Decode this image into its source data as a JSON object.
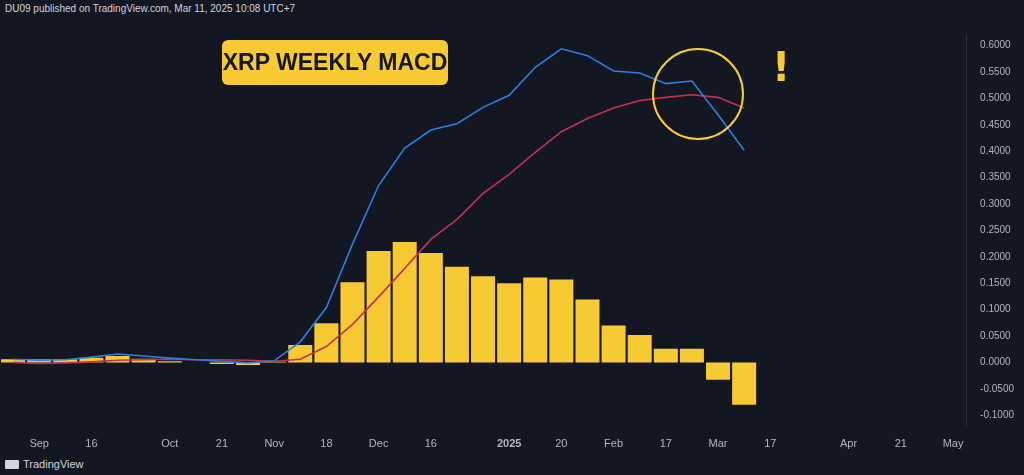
{
  "chart_data": {
    "type": "bar",
    "title": "XRP WEEKLY MACD",
    "source": "DU09 published on TradingView.com, Mar 11, 2025 10:08 UTC+7",
    "footer": "TradingView",
    "annotations": [
      "!"
    ],
    "categories": [
      null,
      "Sep",
      null,
      "16",
      null,
      null,
      "Oct",
      null,
      "21",
      null,
      "Nov",
      null,
      "18",
      null,
      "Dec",
      null,
      "16",
      null,
      null,
      "2025",
      null,
      "20",
      null,
      "Feb",
      null,
      "17",
      null,
      "Mar",
      null,
      "17",
      null,
      null,
      "Apr",
      null,
      "21",
      null,
      "May"
    ],
    "series": [
      {
        "type": "line",
        "color": "#2b7fe0",
        "values": [
          0.006,
          0.004,
          0.005,
          0.01,
          0.016,
          0.012,
          0.008,
          0.005,
          0.002,
          -0.001,
          0.003,
          0.039,
          0.104,
          0.224,
          0.335,
          0.406,
          0.44,
          0.452,
          0.483,
          0.506,
          0.559,
          0.594,
          0.581,
          0.552,
          0.548,
          0.528,
          0.533,
          0.469,
          0.402,
          null,
          null,
          null,
          null,
          null,
          null,
          null,
          null
        ]
      },
      {
        "type": "line",
        "color": "#c2334d",
        "values": [
          0.0,
          -0.002,
          -0.001,
          0.001,
          0.004,
          0.005,
          0.006,
          0.005,
          0.005,
          0.004,
          0.002,
          0.006,
          0.03,
          0.072,
          0.124,
          0.178,
          0.233,
          0.271,
          0.32,
          0.356,
          0.398,
          0.437,
          0.462,
          0.482,
          0.496,
          0.502,
          0.507,
          0.502,
          0.482,
          null,
          null,
          null,
          null,
          null,
          null,
          null,
          null
        ]
      },
      {
        "type": "bar",
        "color": "#f7c933",
        "values": [
          0.006,
          0.006,
          0.006,
          0.009,
          0.012,
          0.007,
          0.002,
          0.0,
          -0.003,
          -0.005,
          0.001,
          0.033,
          0.074,
          0.152,
          0.211,
          0.228,
          0.207,
          0.181,
          0.163,
          0.15,
          0.161,
          0.157,
          0.119,
          0.07,
          0.052,
          0.026,
          0.026,
          -0.033,
          -0.08,
          null,
          null,
          null,
          null,
          null,
          null,
          null,
          null
        ]
      }
    ],
    "ylim": [
      -0.122,
      0.622
    ],
    "yticks": [
      {
        "value": -0.1,
        "label": "-0.1000"
      },
      {
        "value": -0.05,
        "label": "-0.0500"
      },
      {
        "value": 0,
        "label": "0.0000"
      },
      {
        "value": 0.05,
        "label": "0.0500"
      },
      {
        "value": 0.1,
        "label": "0.1000"
      },
      {
        "value": 0.15,
        "label": "0.1500"
      },
      {
        "value": 0.2,
        "label": "0.2000"
      },
      {
        "value": 0.25,
        "label": "0.2500"
      },
      {
        "value": 0.3,
        "label": "0.3000"
      },
      {
        "value": 0.35,
        "label": "0.3500"
      },
      {
        "value": 0.4,
        "label": "0.4000"
      },
      {
        "value": 0.45,
        "label": "0.4500"
      },
      {
        "value": 0.5,
        "label": "0.5000"
      },
      {
        "value": 0.55,
        "label": "0.5500"
      },
      {
        "value": 0.6,
        "label": "0.6000"
      }
    ],
    "grid": false
  }
}
